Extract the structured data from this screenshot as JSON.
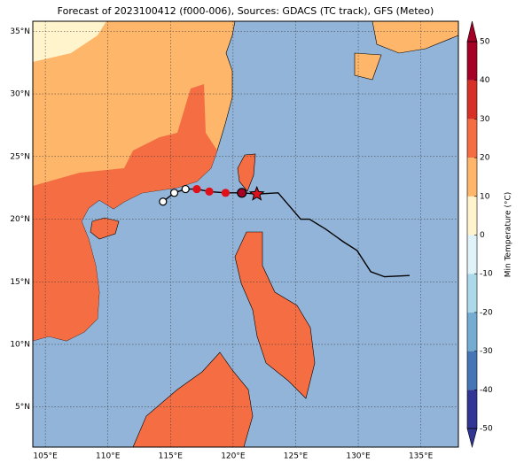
{
  "chart_data": {
    "type": "map",
    "title": "Forecast of 2023100412 (f000-006), Sources: GDACS (TC track), GFS (Meteo)",
    "xlim": [
      104,
      138
    ],
    "ylim": [
      1.8,
      35.8
    ],
    "xticks": [
      {
        "value": 105,
        "label": "105°E"
      },
      {
        "value": 110,
        "label": "110°E"
      },
      {
        "value": 115,
        "label": "115°E"
      },
      {
        "value": 120,
        "label": "120°E"
      },
      {
        "value": 125,
        "label": "125°E"
      },
      {
        "value": 130,
        "label": "130°E"
      },
      {
        "value": 135,
        "label": "135°E"
      }
    ],
    "yticks": [
      {
        "value": 5,
        "label": "5°N"
      },
      {
        "value": 10,
        "label": "10°N"
      },
      {
        "value": 15,
        "label": "15°N"
      },
      {
        "value": 20,
        "label": "20°N"
      },
      {
        "value": 25,
        "label": "25°N"
      },
      {
        "value": 30,
        "label": "30°N"
      },
      {
        "value": 35,
        "label": "35°N"
      }
    ],
    "grid": true,
    "track": {
      "lon": [
        134.1,
        132.1,
        131.0,
        129.9,
        128.8,
        127.4,
        126.1,
        125.4,
        123.6,
        121.9,
        120.7,
        119.4,
        118.1,
        117.1,
        116.2,
        115.3,
        114.4
      ],
      "lat": [
        15.5,
        15.4,
        15.8,
        17.5,
        18.2,
        19.2,
        20.0,
        20.0,
        22.1,
        22.0,
        22.1,
        22.1,
        22.2,
        22.4,
        22.4,
        22.1,
        21.4
      ]
    },
    "colorbar": {
      "label": "Min Temperature (°C)",
      "clim": [
        -50,
        50
      ],
      "ticks": [
        50,
        40,
        30,
        20,
        10,
        0,
        -10,
        -20,
        -30,
        -40,
        -50
      ],
      "colors": [
        "#313695",
        "#4575b4",
        "#74add1",
        "#abd9e9",
        "#e0f3f8",
        "#fff4cc",
        "#fdb66a",
        "#f46d43",
        "#d73027",
        "#a50026"
      ]
    }
  }
}
